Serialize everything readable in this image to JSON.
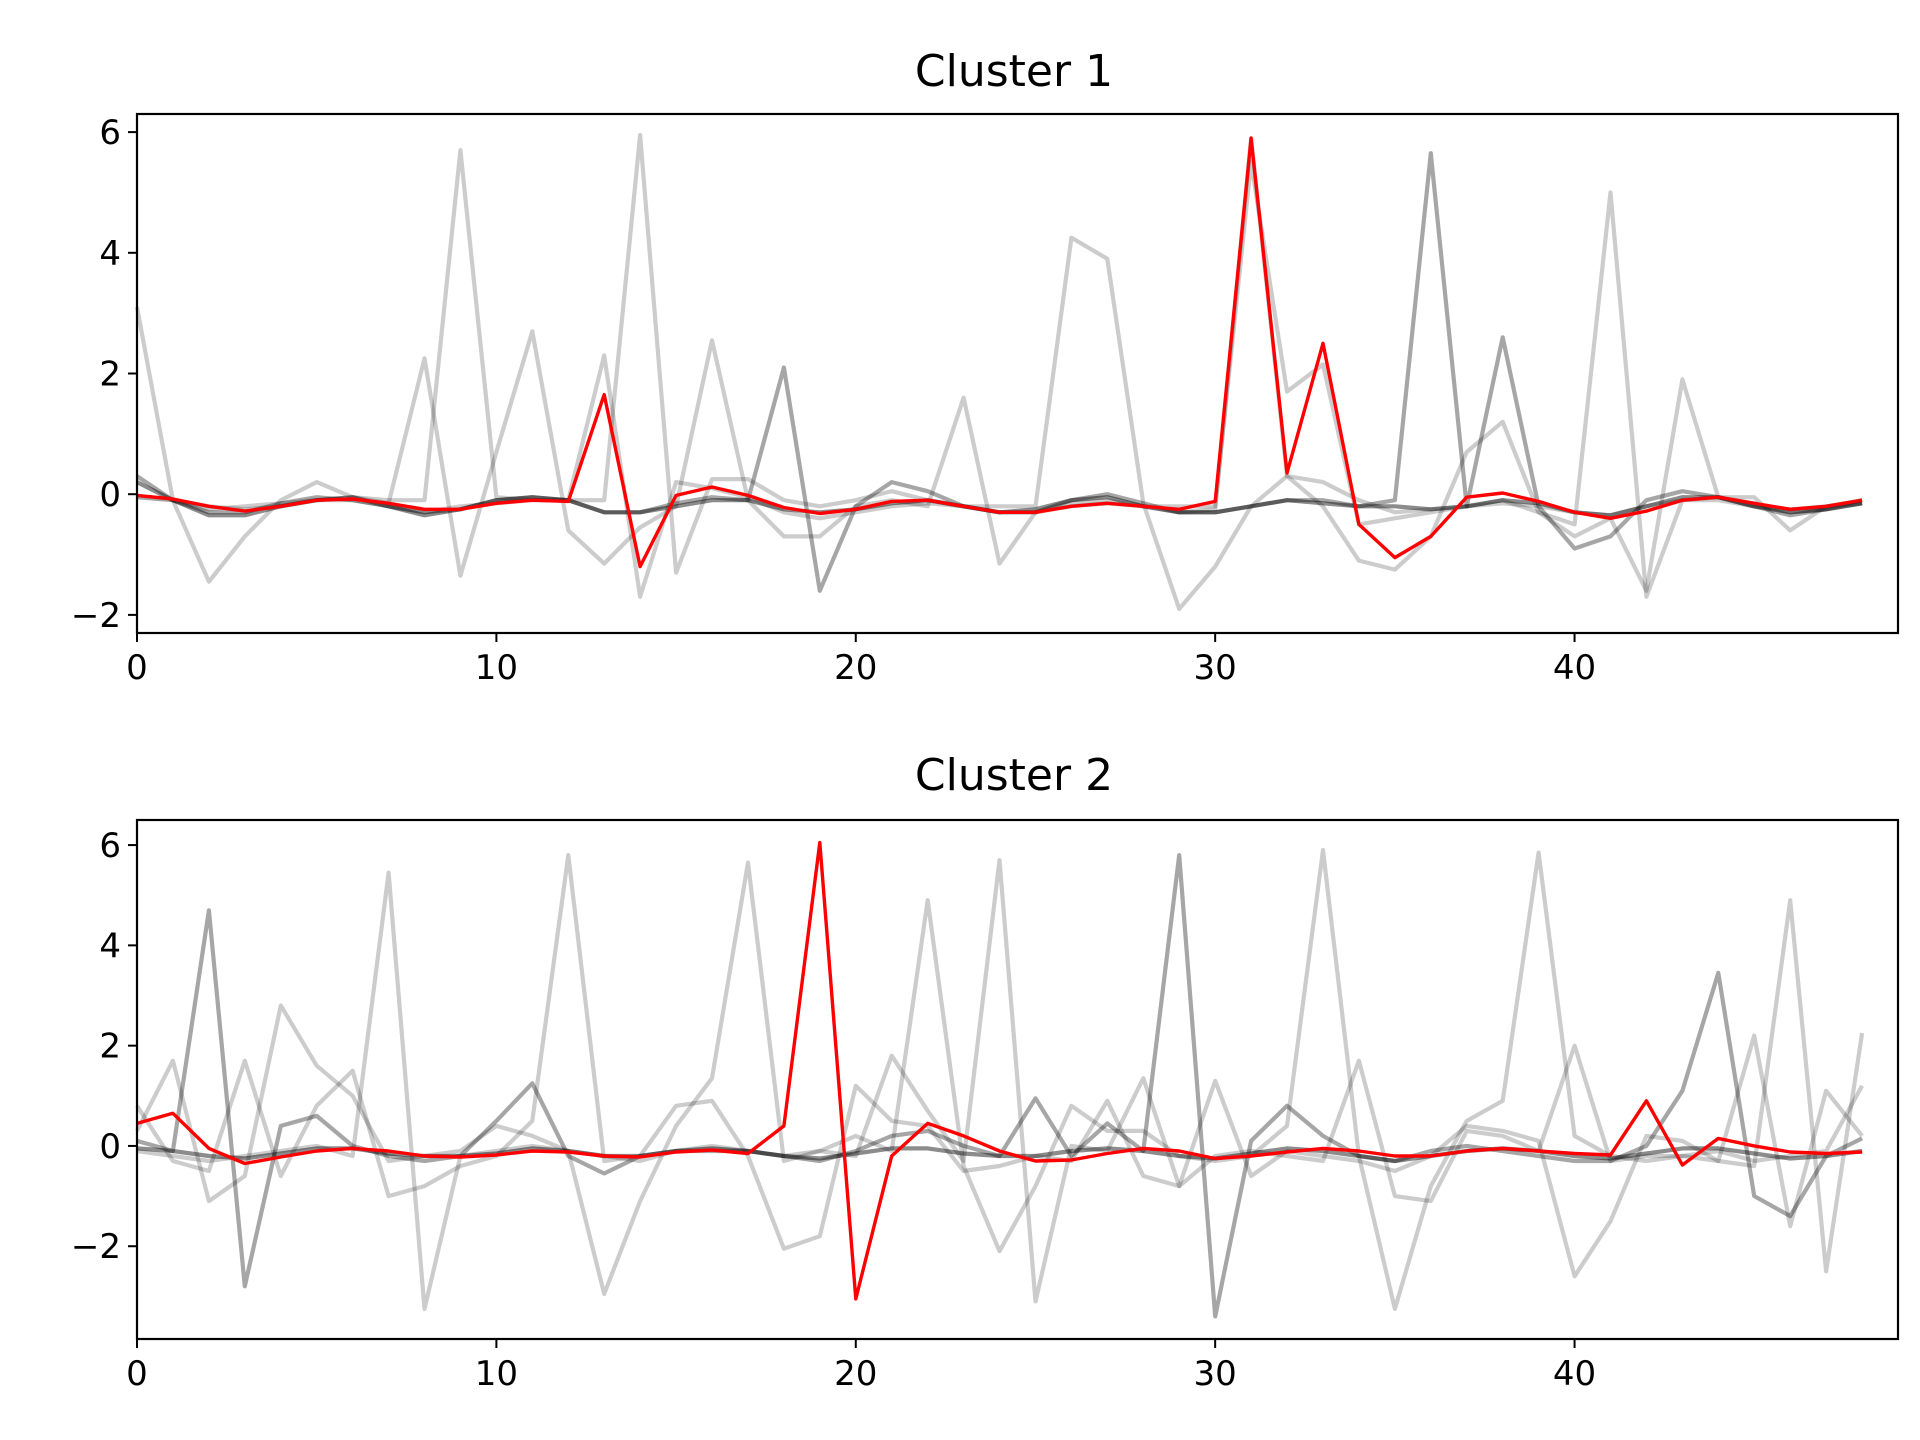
{
  "chart_data": [
    {
      "type": "line",
      "title": "Cluster 1",
      "xlim": [
        0,
        49
      ],
      "ylim": [
        -2.3,
        6.3
      ],
      "xticks": [
        0,
        10,
        20,
        30,
        40
      ],
      "yticks": [
        -2,
        0,
        2,
        4,
        6
      ],
      "grid": false,
      "background_color": "#000000",
      "centroid_color": "#ff0000",
      "series": [
        {
          "alpha": 0.2,
          "values": [
            3.1,
            -0.1,
            -1.45,
            -0.7,
            -0.1,
            0.2,
            -0.05,
            -0.1,
            -0.1,
            5.7,
            -0.05,
            -0.1,
            -0.1,
            -0.1,
            5.95,
            -1.3,
            0.25,
            0.25,
            -0.1,
            -0.2,
            -0.1,
            0.05,
            -0.1,
            -0.2,
            -0.2,
            -0.2,
            4.25,
            3.9,
            -0.15,
            -1.9,
            -1.2,
            -0.2,
            0.3,
            -0.2,
            -1.1,
            -1.25,
            -0.7,
            0.7,
            1.2,
            -0.3,
            -0.7,
            -0.4,
            -1.6,
            1.9,
            -0.05,
            -0.05,
            -0.6,
            -0.2,
            -0.15
          ]
        },
        {
          "alpha": 0.2,
          "values": [
            -0.05,
            -0.1,
            -0.2,
            -0.25,
            -0.2,
            -0.1,
            -0.05,
            -0.15,
            2.25,
            -1.35,
            0.7,
            2.7,
            -0.6,
            -1.15,
            -0.55,
            -0.2,
            2.55,
            -0.1,
            -0.7,
            -0.7,
            -0.2,
            -0.1,
            -0.2,
            1.6,
            -1.15,
            -0.3,
            -0.2,
            -0.15,
            -0.2,
            -0.2,
            -0.2,
            5.5,
            1.7,
            2.15,
            -0.5,
            -0.4,
            -0.3,
            -0.2,
            -0.1,
            -0.3,
            -0.5,
            5.0,
            -1.7,
            -0.1,
            -0.1,
            -0.2,
            -0.25,
            -0.2,
            -0.1
          ]
        },
        {
          "alpha": 0.2,
          "values": [
            -0.05,
            -0.1,
            -0.25,
            -0.2,
            -0.15,
            -0.1,
            -0.1,
            -0.2,
            -0.3,
            -0.2,
            -0.15,
            -0.1,
            -0.1,
            2.3,
            -1.7,
            0.2,
            0.1,
            -0.05,
            -0.3,
            -0.4,
            -0.3,
            -0.2,
            -0.15,
            -0.2,
            -0.3,
            -0.3,
            -0.15,
            -0.1,
            -0.2,
            -0.3,
            -0.25,
            5.9,
            0.3,
            0.2,
            -0.1,
            -0.3,
            -0.25,
            -0.2,
            -0.15,
            -0.2,
            -0.3,
            -0.35,
            -0.2,
            -0.1,
            -0.05,
            -0.15,
            -0.3,
            -0.25,
            -0.1
          ]
        },
        {
          "alpha": 0.35,
          "values": [
            0.3,
            -0.1,
            -0.3,
            -0.3,
            -0.15,
            -0.05,
            -0.1,
            -0.2,
            -0.3,
            -0.25,
            -0.1,
            -0.05,
            -0.1,
            -0.3,
            -0.3,
            -0.15,
            -0.05,
            -0.1,
            2.1,
            -1.6,
            -0.2,
            0.2,
            0.05,
            -0.2,
            -0.3,
            -0.3,
            -0.1,
            0.0,
            -0.15,
            -0.3,
            -0.3,
            -0.2,
            -0.1,
            -0.1,
            -0.2,
            -0.1,
            5.65,
            -0.2,
            2.6,
            -0.2,
            -0.9,
            -0.7,
            -0.1,
            0.05,
            -0.05,
            -0.2,
            -0.35,
            -0.25,
            -0.15
          ]
        },
        {
          "alpha": 0.45,
          "values": [
            0.2,
            -0.1,
            -0.35,
            -0.35,
            -0.2,
            -0.1,
            -0.05,
            -0.2,
            -0.35,
            -0.25,
            -0.1,
            -0.05,
            -0.1,
            -0.3,
            -0.3,
            -0.2,
            -0.1,
            -0.1,
            -0.25,
            -0.3,
            -0.25,
            -0.15,
            -0.1,
            -0.2,
            -0.3,
            -0.25,
            -0.1,
            -0.05,
            -0.2,
            -0.3,
            -0.3,
            -0.2,
            -0.1,
            -0.15,
            -0.2,
            -0.2,
            -0.25,
            -0.2,
            -0.1,
            -0.15,
            -0.3,
            -0.35,
            -0.2,
            -0.05,
            -0.05,
            -0.2,
            -0.3,
            -0.25,
            -0.15
          ]
        }
      ],
      "centroid": [
        -0.02,
        -0.08,
        -0.2,
        -0.28,
        -0.2,
        -0.1,
        -0.08,
        -0.15,
        -0.25,
        -0.25,
        -0.15,
        -0.1,
        -0.12,
        1.65,
        -1.2,
        -0.02,
        0.12,
        -0.02,
        -0.22,
        -0.32,
        -0.25,
        -0.12,
        -0.1,
        -0.2,
        -0.3,
        -0.3,
        -0.2,
        -0.15,
        -0.2,
        -0.25,
        -0.12,
        5.9,
        0.35,
        2.5,
        -0.5,
        -1.05,
        -0.7,
        -0.05,
        0.02,
        -0.12,
        -0.3,
        -0.4,
        -0.28,
        -0.1,
        -0.05,
        -0.15,
        -0.25,
        -0.2,
        -0.1
      ]
    },
    {
      "type": "line",
      "title": "Cluster 2",
      "xlim": [
        0,
        49
      ],
      "ylim": [
        -3.85,
        6.5
      ],
      "xticks": [
        0,
        10,
        20,
        30,
        40
      ],
      "yticks": [
        -2,
        0,
        2,
        4,
        6
      ],
      "grid": false,
      "background_color": "#000000",
      "centroid_color": "#ff0000",
      "series": [
        {
          "alpha": 0.2,
          "values": [
            0.8,
            -0.3,
            -0.5,
            1.7,
            -0.6,
            0.8,
            1.5,
            -1.0,
            -0.8,
            -0.4,
            -0.2,
            0.5,
            5.8,
            -0.3,
            -0.2,
            0.8,
            0.9,
            -0.2,
            -2.05,
            -1.8,
            1.2,
            0.5,
            0.4,
            -0.5,
            -0.4,
            -0.2,
            -0.3,
            0.9,
            -0.6,
            -0.8,
            1.3,
            -0.6,
            -0.1,
            -0.2,
            -0.3,
            -0.5,
            -0.2,
            0.4,
            0.3,
            0.1,
            -2.6,
            -1.5,
            0.2,
            0.1,
            -0.3,
            2.2,
            -1.6,
            1.1,
            0.2
          ]
        },
        {
          "alpha": 0.2,
          "values": [
            0.3,
            1.7,
            -1.1,
            -0.6,
            2.8,
            1.6,
            1.0,
            -0.3,
            -0.2,
            -0.1,
            0.4,
            0.2,
            -0.1,
            -2.95,
            -1.1,
            0.4,
            1.35,
            5.65,
            -0.3,
            -0.1,
            0.2,
            -0.1,
            4.9,
            -0.4,
            -2.1,
            -0.8,
            0.8,
            0.3,
            0.3,
            -0.2,
            -0.3,
            -0.2,
            0.4,
            5.9,
            -0.2,
            -3.25,
            -0.8,
            0.5,
            0.9,
            5.85,
            0.2,
            -0.2,
            -0.3,
            -0.2,
            -0.3,
            -0.4,
            4.9,
            -2.5,
            2.25
          ]
        },
        {
          "alpha": 0.2,
          "values": [
            -0.1,
            -0.2,
            -0.3,
            -0.2,
            -0.1,
            0.0,
            -0.2,
            5.45,
            -3.25,
            -0.2,
            -0.1,
            0.0,
            -0.1,
            -0.2,
            -0.3,
            -0.1,
            0.0,
            -0.1,
            -0.2,
            -0.1,
            -0.2,
            1.8,
            0.7,
            -0.3,
            5.7,
            -3.1,
            0.0,
            -0.1,
            1.35,
            -0.8,
            -0.2,
            -0.1,
            -0.2,
            -0.3,
            1.7,
            -1.0,
            -1.1,
            0.3,
            0.2,
            -0.1,
            2.0,
            -0.3,
            -0.2,
            -0.2,
            -0.1,
            -0.3,
            -0.2,
            -0.1,
            1.2
          ]
        },
        {
          "alpha": 0.35,
          "values": [
            0.1,
            -0.1,
            4.7,
            -2.8,
            0.4,
            0.6,
            0.0,
            -0.2,
            -0.3,
            -0.2,
            0.5,
            1.25,
            -0.2,
            -0.55,
            -0.2,
            -0.1,
            -0.1,
            -0.1,
            -0.2,
            -0.3,
            -0.1,
            0.2,
            0.3,
            0.0,
            -0.2,
            0.95,
            -0.2,
            0.45,
            -0.1,
            5.8,
            -3.4,
            0.1,
            0.8,
            0.2,
            -0.2,
            -0.3,
            -0.1,
            0.0,
            -0.1,
            -0.2,
            -0.3,
            -0.3,
            0.0,
            1.1,
            3.45,
            -1.0,
            -1.4,
            -0.2,
            0.15
          ]
        },
        {
          "alpha": 0.45,
          "values": [
            -0.05,
            -0.1,
            -0.2,
            -0.25,
            -0.15,
            -0.05,
            -0.05,
            -0.15,
            -0.2,
            -0.2,
            -0.15,
            -0.05,
            -0.1,
            -0.2,
            -0.2,
            -0.1,
            -0.05,
            -0.1,
            -0.2,
            -0.25,
            -0.15,
            -0.05,
            -0.05,
            -0.15,
            -0.2,
            -0.2,
            -0.1,
            -0.05,
            -0.1,
            -0.2,
            -0.25,
            -0.15,
            -0.05,
            -0.1,
            -0.2,
            -0.3,
            -0.2,
            -0.1,
            -0.05,
            -0.1,
            -0.2,
            -0.25,
            -0.15,
            -0.05,
            -0.05,
            -0.15,
            -0.25,
            -0.2,
            -0.1
          ]
        }
      ],
      "centroid": [
        0.45,
        0.65,
        -0.05,
        -0.35,
        -0.22,
        -0.1,
        -0.05,
        -0.1,
        -0.2,
        -0.22,
        -0.18,
        -0.1,
        -0.12,
        -0.2,
        -0.22,
        -0.12,
        -0.08,
        -0.15,
        0.4,
        6.05,
        -3.05,
        -0.2,
        0.45,
        0.2,
        -0.1,
        -0.3,
        -0.28,
        -0.15,
        -0.05,
        -0.1,
        -0.25,
        -0.2,
        -0.12,
        -0.05,
        -0.1,
        -0.2,
        -0.2,
        -0.1,
        -0.05,
        -0.1,
        -0.15,
        -0.18,
        0.9,
        -0.38,
        0.15,
        0.0,
        -0.12,
        -0.15,
        -0.12
      ]
    }
  ]
}
